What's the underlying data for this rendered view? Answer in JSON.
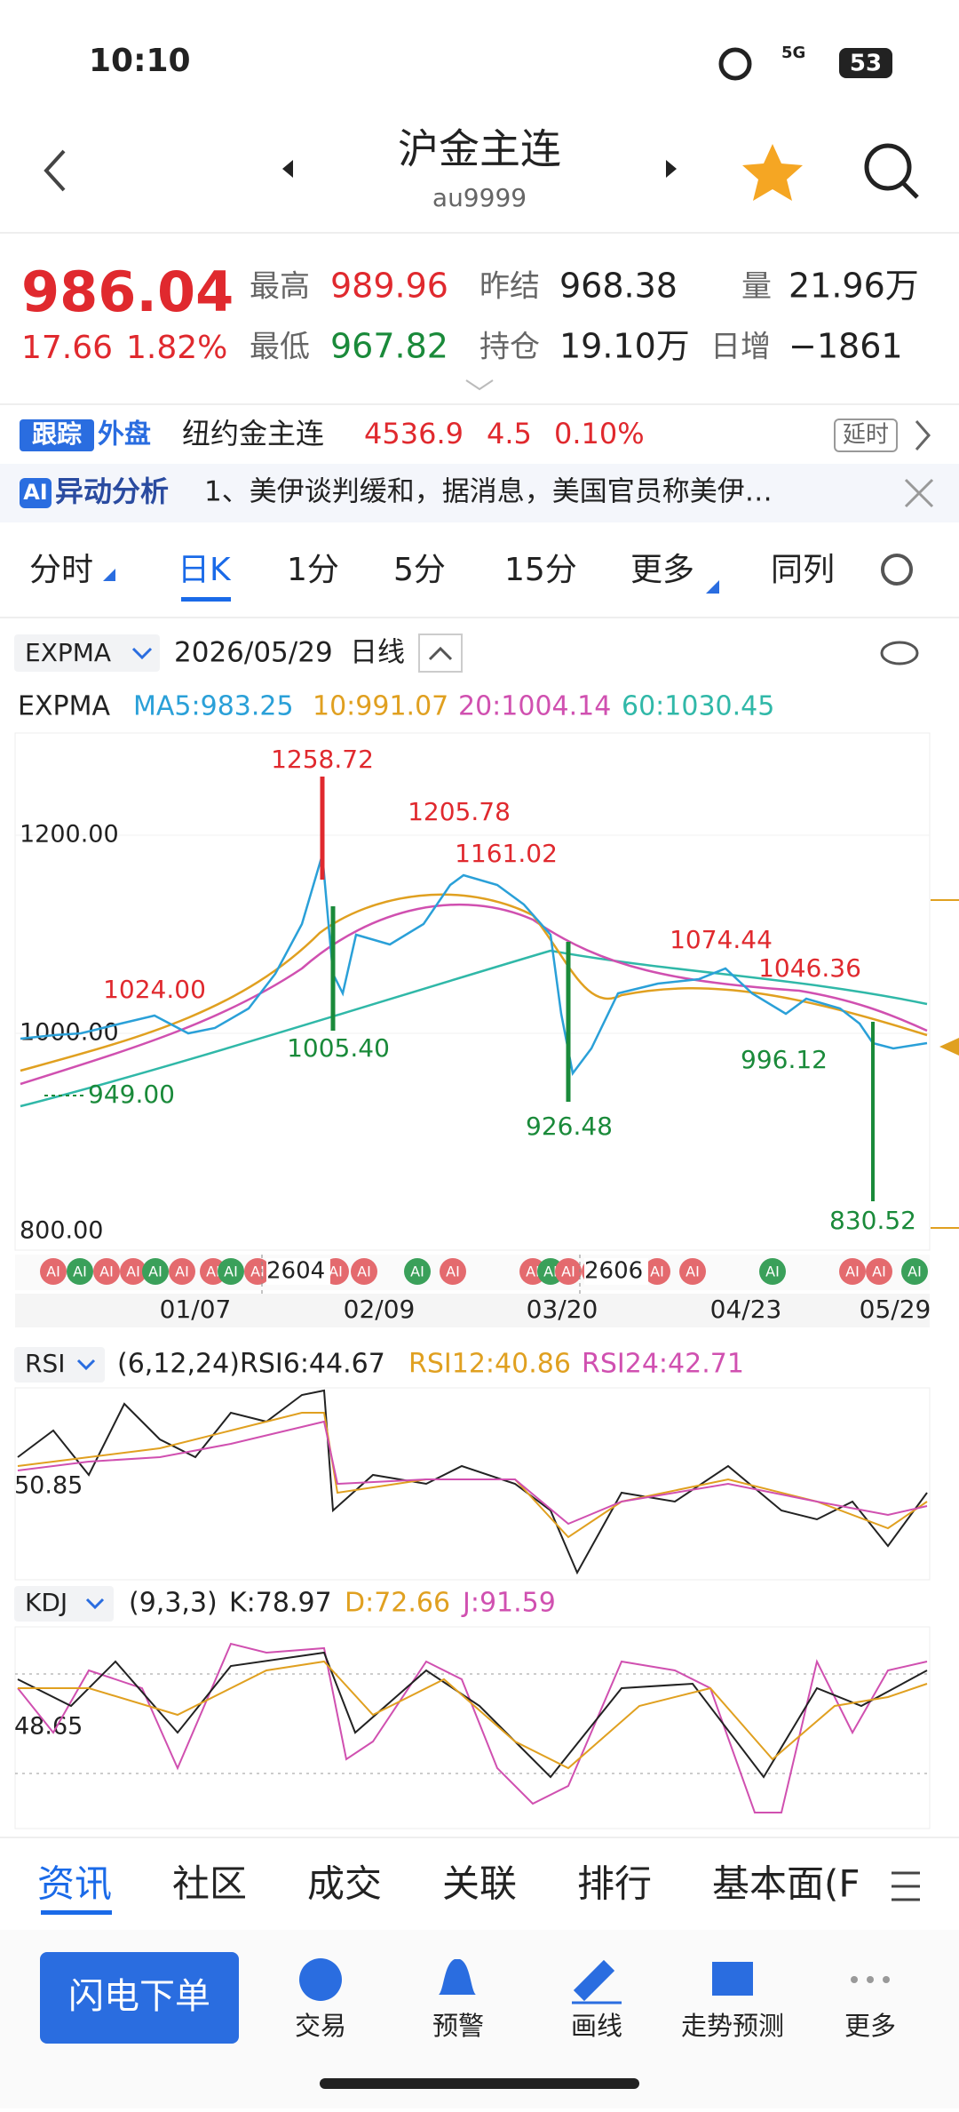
{
  "status": {
    "time": "10:10",
    "network": "5G",
    "battery": "53"
  },
  "header": {
    "title": "沪金主连",
    "code": "au9999"
  },
  "quote": {
    "price": "986.04",
    "change": "17.66",
    "percent": "1.82%",
    "fields": [
      {
        "label": "最高",
        "value": "989.96"
      },
      {
        "label": "昨结",
        "value": "968.38"
      },
      {
        "label": "量",
        "value": "21.96万"
      },
      {
        "label": "最低",
        "value": "967.82"
      },
      {
        "label": "持仓",
        "value": "19.10万"
      },
      {
        "label": "日增",
        "value": "−1861"
      }
    ]
  },
  "foreign": {
    "tag1": "跟踪",
    "tag2": "外盘",
    "name": "纽约金主连",
    "price": "4536.9",
    "change": "4.5",
    "percent": "0.10%",
    "delay": "延时"
  },
  "ai": {
    "tag": "AI",
    "title": "异动分析",
    "text": "1、美伊谈判缓和，据消息，美国官员称美伊…"
  },
  "tabs": [
    "分时",
    "日K",
    "1分",
    "5分",
    "15分",
    "更多",
    "同列"
  ],
  "kline": {
    "indicator": "EXPMA",
    "date": "2026/05/29",
    "period": "日线",
    "legend_name": "EXPMA",
    "legend": [
      "MA5:983.25",
      "10:991.07",
      "20:1004.14",
      "60:1030.45"
    ],
    "yticks": [
      "1200.00",
      "1000.00",
      "800.00"
    ],
    "annotations": [
      "1258.72",
      "1205.78",
      "1161.02",
      "1024.00",
      "1005.40",
      "949.00",
      "926.48",
      "1074.44",
      "1046.36",
      "996.12",
      "830.52"
    ],
    "contracts": [
      "2604",
      "2606"
    ],
    "marker": "AI",
    "dates": [
      "01/07",
      "02/09",
      "03/20",
      "04/23",
      "05/29"
    ]
  },
  "rsi": {
    "name": "RSI",
    "params": "(6,12,24)",
    "items": [
      "RSI6:44.67",
      "RSI12:40.86",
      "RSI24:42.71"
    ],
    "level": "50.85"
  },
  "kdj": {
    "name": "KDJ",
    "params": "(9,3,3)",
    "items": [
      "K:78.97",
      "D:72.66",
      "J:91.59"
    ],
    "level": "48.65"
  },
  "bottom_tabs": [
    "资讯",
    "社区",
    "成交",
    "关联",
    "排行",
    "基本面(F"
  ],
  "toolbar": {
    "button": "闪电下单",
    "items": [
      "交易",
      "预警",
      "画线",
      "走势预测",
      "更多"
    ]
  }
}
